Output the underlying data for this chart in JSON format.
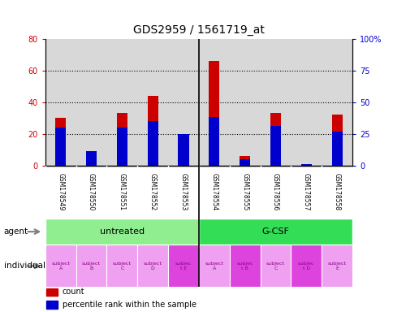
{
  "title": "GDS2959 / 1561719_at",
  "samples": [
    "GSM178549",
    "GSM178550",
    "GSM178551",
    "GSM178552",
    "GSM178553",
    "GSM178554",
    "GSM178555",
    "GSM178556",
    "GSM178557",
    "GSM178558"
  ],
  "count_values": [
    30,
    9,
    33,
    44,
    19,
    66,
    6,
    33,
    1,
    32
  ],
  "percentile_values": [
    30,
    11,
    30,
    35,
    25,
    38,
    5,
    31,
    1,
    27
  ],
  "ylim_left": [
    0,
    80
  ],
  "ylim_right": [
    0,
    100
  ],
  "yticks_left": [
    0,
    20,
    40,
    60,
    80
  ],
  "yticks_right": [
    0,
    25,
    50,
    75,
    100
  ],
  "agent_groups": [
    {
      "label": "untreated",
      "start": 0,
      "end": 4,
      "color": "#90ee90"
    },
    {
      "label": "G-CSF",
      "start": 5,
      "end": 9,
      "color": "#33dd55"
    }
  ],
  "individual_labels": [
    "subject\nA",
    "subject\nB",
    "subject\nC",
    "subject\nD",
    "subjec\nt E",
    "subject\nA",
    "subjec\nt B",
    "subject\nC",
    "subjec\nt D",
    "subject\nE"
  ],
  "individual_highlight": [
    4,
    6,
    8
  ],
  "individual_color_normal": "#f0a0f0",
  "individual_color_highlight": "#dd44dd",
  "bar_color_count": "#cc0000",
  "bar_color_percentile": "#0000cc",
  "bar_width": 0.35,
  "plot_bg_color": "#d8d8d8",
  "xtick_area_color": "#cccccc",
  "title_fontsize": 10
}
